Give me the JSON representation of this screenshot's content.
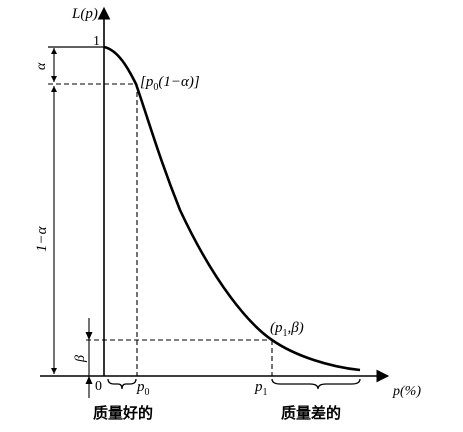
{
  "figure": {
    "y_axis_label": "L(p)",
    "x_axis_label": "p(%)",
    "origin_label": "0",
    "y_top_tick": "1",
    "alpha_label": "α",
    "one_minus_alpha_label": "1−α",
    "beta_label": "β",
    "p0_label": "p",
    "p0_sub": "0",
    "p1_label": "p",
    "p1_sub": "1",
    "point_a_label_pre": "[p",
    "point_a_label_sub": "0",
    "point_a_label_post": "(1−α)]",
    "point_b_label_pre": "(p",
    "point_b_label_sub": "1",
    "point_b_label_post": ",β)",
    "good_quality_label": "质量好的",
    "poor_quality_label": "质量差的"
  }
}
